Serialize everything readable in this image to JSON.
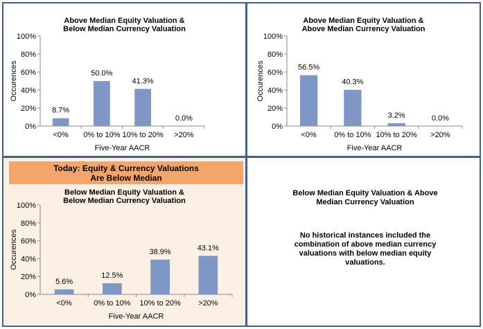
{
  "colors": {
    "bar": "#7f97c7",
    "border": "#3f5f8f",
    "today_bg": "#fcefe3",
    "today_banner": "#f4a66a"
  },
  "today_banner": "Today:  Equity  & Currency Valuations\nAre Below Median",
  "chart_data": [
    {
      "type": "bar",
      "title": "Above Median Equity Valuation &\nBelow Median Currency Valuation",
      "xlabel": "Five-Year AACR",
      "ylabel": "Occurences",
      "categories": [
        "<0%",
        "0% to 10%",
        "10% to 20%",
        ">20%"
      ],
      "values": [
        8.7,
        50.0,
        41.3,
        0.0
      ],
      "value_labels": [
        "8.7%",
        "50.0%",
        "41.3%",
        "0.0%"
      ],
      "yticks": [
        "0%",
        "20%",
        "40%",
        "60%",
        "80%",
        "100%"
      ],
      "ylim": [
        0,
        100
      ],
      "grid": false
    },
    {
      "type": "bar",
      "title": "Above Median Equity Valuation &\nAbove Median Currency Valuation",
      "xlabel": "Five-Year AACR",
      "ylabel": "Occurences",
      "categories": [
        "<0%",
        "0% to 10%",
        "10% to 20%",
        ">20%"
      ],
      "values": [
        56.5,
        40.3,
        3.2,
        0.0
      ],
      "value_labels": [
        "56.5%",
        "40.3%",
        "3.2%",
        "0.0%"
      ],
      "yticks": [
        "0%",
        "20%",
        "40%",
        "60%",
        "80%",
        "100%"
      ],
      "ylim": [
        0,
        100
      ],
      "grid": false
    },
    {
      "type": "bar",
      "title": "Below Median Equity Valuation &\nBelow Median Currency Valuation",
      "xlabel": "Five-Year AACR",
      "ylabel": "Occurences",
      "categories": [
        "<0%",
        "0% to 10%",
        "10% to 20%",
        ">20%"
      ],
      "values": [
        5.6,
        12.5,
        38.9,
        43.1
      ],
      "value_labels": [
        "5.6%",
        "12.5%",
        "38.9%",
        "43.1%"
      ],
      "yticks": [
        "0%",
        "20%",
        "40%",
        "60%",
        "80%",
        "100%"
      ],
      "ylim": [
        0,
        100
      ],
      "grid": false
    }
  ],
  "note_panel": {
    "title": "Below Median Equity Valuation & Above\nMedian Currency Valuation",
    "body": "No historical instances included the\ncombination of above median currency\nvaluations with below median equity\nvaluations."
  }
}
